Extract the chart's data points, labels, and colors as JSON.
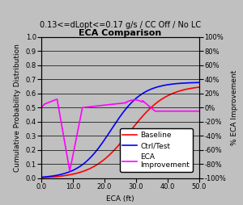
{
  "title": "ECA Comparison",
  "subtitle": "0.13<=dLopt<=0.17 g/s / CC Off / No LC",
  "xlabel": "ECA (ft)",
  "ylabel_left": "Cumulative Probability Distribution",
  "ylabel_right": "% ECA Improvement",
  "xlim": [
    0.0,
    50.0
  ],
  "ylim_left": [
    0.0,
    1.0
  ],
  "ylim_right": [
    -1.0,
    1.0
  ],
  "yticks_left": [
    0.0,
    0.1,
    0.2,
    0.3,
    0.4,
    0.5,
    0.6,
    0.7,
    0.8,
    0.9,
    1.0
  ],
  "yticks_right_vals": [
    -1.0,
    -0.8,
    -0.6,
    -0.4,
    -0.2,
    0.0,
    0.2,
    0.4,
    0.6,
    0.8,
    1.0
  ],
  "yticks_right_labels": [
    "-100%",
    "-80%",
    "-60%",
    "-40%",
    "-20%",
    "0%",
    "20%",
    "40%",
    "60%",
    "80%",
    "100%"
  ],
  "xticks": [
    0.0,
    10.0,
    20.0,
    30.0,
    40.0,
    50.0
  ],
  "background_color": "#c0c0c0",
  "plot_bg_color": "#c0c0c0",
  "line_baseline_color": "#ff0000",
  "line_ctrl_color": "#0000ff",
  "line_eca_color": "#ff00ff",
  "legend_labels": [
    "Baseline",
    "Ctrl/Test",
    "ECA\nImprovement"
  ],
  "title_fontsize": 8,
  "subtitle_fontsize": 7,
  "label_fontsize": 6.5,
  "tick_fontsize": 6,
  "legend_fontsize": 6.5
}
